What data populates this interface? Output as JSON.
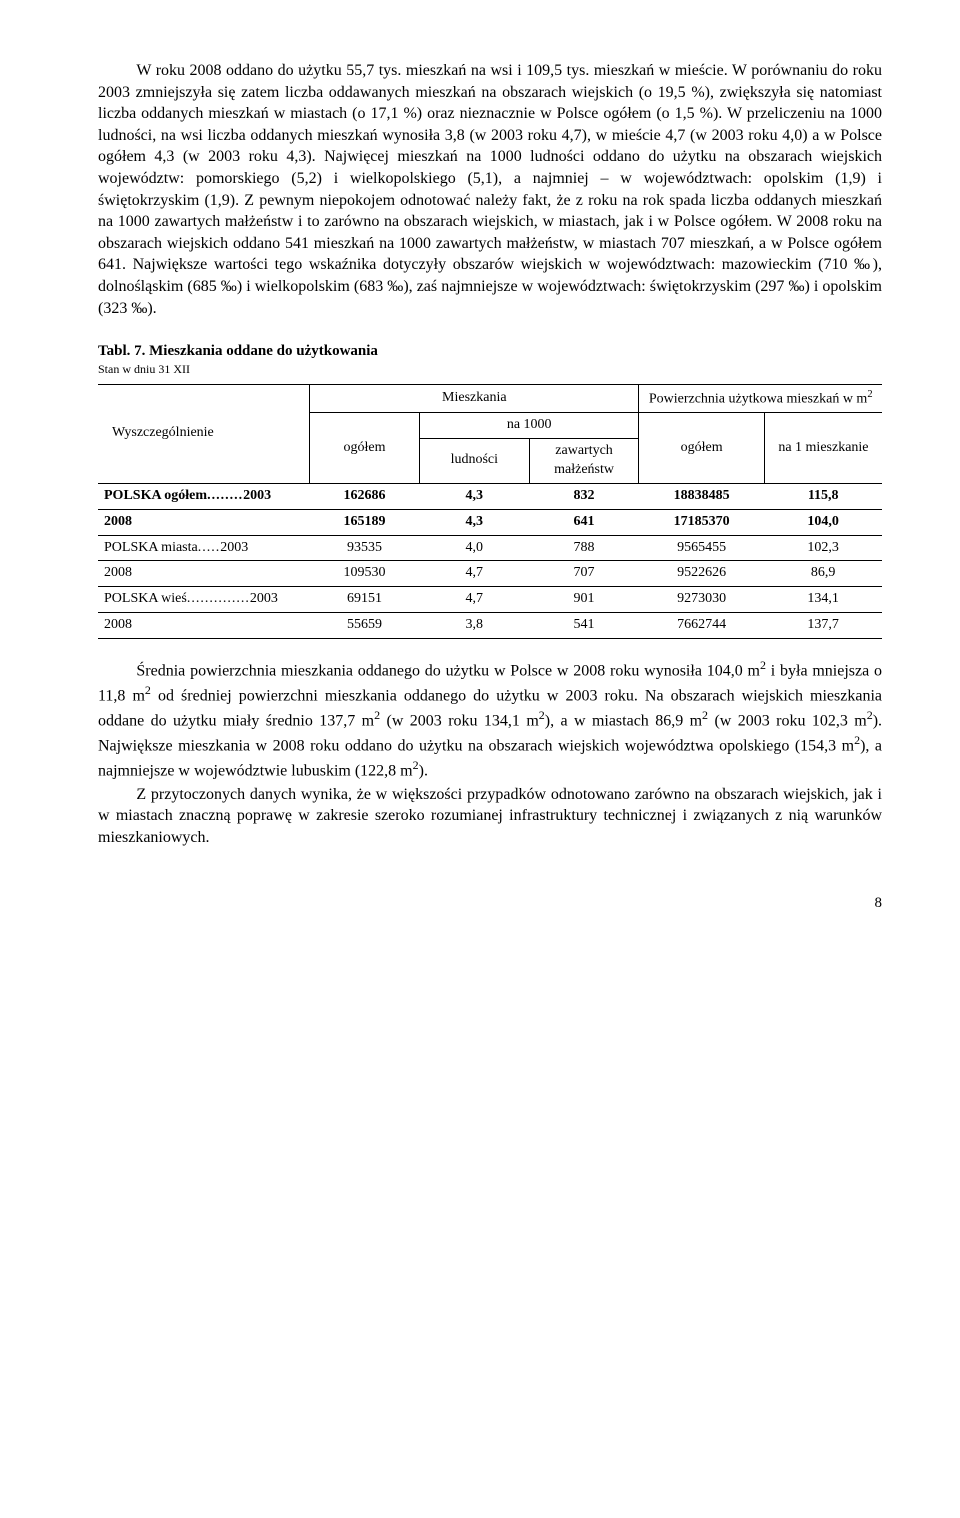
{
  "paragraphs": {
    "p1": "W roku 2008 oddano do użytku 55,7 tys. mieszkań na wsi i 109,5 tys. mieszkań w mieście. W porównaniu do roku 2003 zmniejszyła się zatem liczba oddawanych mieszkań na obszarach wiejskich (o 19,5 %), zwiększyła się natomiast liczba oddanych mieszkań w miastach (o 17,1 %) oraz nieznacznie w Polsce ogółem (o 1,5 %). W przeliczeniu na 1000 ludności, na wsi liczba oddanych mieszkań wynosiła 3,8 (w 2003 roku 4,7), w mieście 4,7 (w 2003 roku 4,0) a w Polsce ogółem 4,3 (w 2003 roku 4,3). Najwięcej mieszkań na 1000 ludności oddano do użytku na obszarach wiejskich województw: pomorskiego (5,2) i wielkopolskiego (5,1), a najmniej – w województwach: opolskim (1,9) i świętokrzyskim (1,9). Z pewnym niepokojem odnotować należy fakt, że z roku na rok spada liczba oddanych mieszkań na 1000 zawartych małżeństw i to zarówno na obszarach wiejskich, w miastach, jak i w Polsce ogółem. W 2008 roku na obszarach wiejskich oddano 541 mieszkań na 1000 zawartych małżeństw, w miastach 707 mieszkań, a w Polsce ogółem 641. Największe wartości tego wskaźnika dotyczyły obszarów wiejskich w województwach: mazowieckim (710 ‰), dolnośląskim (685 ‰) i wielkopolskim (683 ‰), zaś najmniejsze w województwach: świętokrzyskim (297 ‰) i opolskim (323 ‰).",
    "p2_pre": "Średnia powierzchnia mieszkania oddanego do użytku w Polsce w 2008 roku wynosiła 104,0 m",
    "p2_mid1": " i była mniejsza o 11,8 m",
    "p2_mid2": " od średniej powierzchni mieszkania oddanego do użytku w 2003 roku. Na obszarach wiejskich mieszkania oddane do użytku miały średnio 137,7 m",
    "p2_mid3": " (w 2003 roku 134,1 m",
    "p2_mid4": "), a w miastach 86,9 m",
    "p2_mid5": " (w 2003 roku 102,3 m",
    "p2_mid6": "). Największe mieszkania w 2008 roku oddano do użytku na obszarach wiejskich województwa opolskiego (154,3 m",
    "p2_mid7": "), a najmniejsze w województwie lubuskim (122,8 m",
    "p2_end": ").",
    "p3": "Z przytoczonych danych wynika, że w większości przypadków odnotowano zarówno na obszarach wiejskich, jak i w miastach znaczną poprawę w zakresie szeroko rozumianej infrastruktury technicznej i związanych z nią warunków mieszkaniowych."
  },
  "table": {
    "title": "Tabl. 7. Mieszkania oddane do użytkowania",
    "subtitle": "Stan w dniu 31 XII",
    "head": {
      "col0": "Wyszczególnienie",
      "mieszkania": "Mieszkania",
      "pow": "Powierzchnia użytkowa mieszkań w m",
      "ogolem": "ogółem",
      "na1000": "na  1000",
      "ludnosci": "ludności",
      "zawartych": "zawartych małżeństw",
      "na1": "na 1 mieszkanie"
    },
    "rows": [
      {
        "label": "POLSKA ogółem",
        "dots": "........",
        "year": "2003",
        "bold": true,
        "c1": "162686",
        "c2": "4,3",
        "c3": "832",
        "c4": "18838485",
        "c5": "115,8"
      },
      {
        "label": "",
        "dots": "",
        "year": "2008",
        "bold": true,
        "c1": "165189",
        "c2": "4,3",
        "c3": "641",
        "c4": "17185370",
        "c5": "104,0"
      },
      {
        "label": "POLSKA miasta",
        "dots": ".....",
        "year": "2003",
        "bold": false,
        "c1": "93535",
        "c2": "4,0",
        "c3": "788",
        "c4": "9565455",
        "c5": "102,3"
      },
      {
        "label": "",
        "dots": "",
        "year": "2008",
        "bold": false,
        "c1": "109530",
        "c2": "4,7",
        "c3": "707",
        "c4": "9522626",
        "c5": "86,9"
      },
      {
        "label": "POLSKA wieś",
        "dots": "..............",
        "year": "2003",
        "bold": false,
        "c1": "69151",
        "c2": "4,7",
        "c3": "901",
        "c4": "9273030",
        "c5": "134,1"
      },
      {
        "label": "",
        "dots": "",
        "year": "2008",
        "bold": false,
        "c1": "55659",
        "c2": "3,8",
        "c3": "541",
        "c4": "7662744",
        "c5": "137,7"
      }
    ]
  },
  "pagenum": "8",
  "sup2": "2"
}
